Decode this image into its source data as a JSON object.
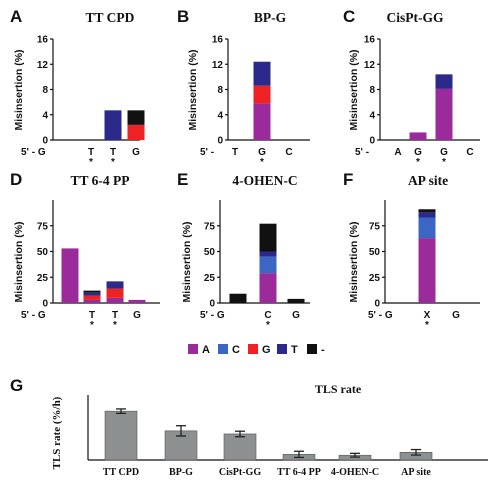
{
  "colors": {
    "A": "#9b2a9b",
    "C": "#3a66c4",
    "G": "#ee2222",
    "T": "#2b2a8a",
    "-": "#111111",
    "tls_bar": "#8c9091"
  },
  "legend": [
    {
      "key": "A",
      "label": "A"
    },
    {
      "key": "C",
      "label": "C"
    },
    {
      "key": "G",
      "label": "G"
    },
    {
      "key": "T",
      "label": "T"
    },
    {
      "key": "-",
      "label": "-"
    }
  ],
  "chart_data": [
    {
      "id": "A",
      "letter": "A",
      "title": "TT CPD",
      "type": "bar",
      "ylabel": "Misinsertion (%)",
      "ylim": [
        0,
        16
      ],
      "yticks": [
        "0",
        "4",
        "8",
        "12",
        "16"
      ],
      "seq_prefix": "5' - G",
      "categories": [
        "T",
        "T",
        "G"
      ],
      "stars": [
        "*",
        "*",
        ""
      ],
      "series": [
        {
          "name": "A",
          "values": [
            0,
            0,
            0
          ]
        },
        {
          "name": "C",
          "values": [
            0,
            0,
            0
          ]
        },
        {
          "name": "G",
          "values": [
            0,
            0,
            2.4
          ]
        },
        {
          "name": "T",
          "values": [
            0,
            4.7,
            0
          ]
        },
        {
          "name": "-",
          "values": [
            0,
            0,
            2.3
          ]
        }
      ]
    },
    {
      "id": "B",
      "letter": "B",
      "title": "BP-G",
      "type": "bar",
      "ylabel": "Misinsertion (%)",
      "ylim": [
        0,
        16
      ],
      "yticks": [
        "0",
        "4",
        "8",
        "12",
        "16"
      ],
      "seq_prefix": "5' -",
      "categories": [
        "T",
        "G",
        "C"
      ],
      "stars": [
        "",
        "*",
        ""
      ],
      "series": [
        {
          "name": "A",
          "values": [
            0,
            5.8,
            0
          ]
        },
        {
          "name": "C",
          "values": [
            0,
            0,
            0
          ]
        },
        {
          "name": "G",
          "values": [
            0,
            2.8,
            0
          ]
        },
        {
          "name": "T",
          "values": [
            0,
            3.8,
            0
          ]
        },
        {
          "name": "-",
          "values": [
            0,
            0,
            0
          ]
        }
      ]
    },
    {
      "id": "C",
      "letter": "C",
      "title": "CisPt-GG",
      "type": "bar",
      "ylabel": "Misinsertion (%)",
      "ylim": [
        0,
        16
      ],
      "yticks": [
        "0",
        "4",
        "8",
        "12",
        "16"
      ],
      "seq_prefix": "5' -",
      "categories": [
        "A",
        "G",
        "G",
        "C"
      ],
      "stars": [
        "",
        "*",
        "*",
        ""
      ],
      "series": [
        {
          "name": "A",
          "values": [
            0,
            1.2,
            8.1,
            0
          ]
        },
        {
          "name": "C",
          "values": [
            0,
            0,
            0,
            0
          ]
        },
        {
          "name": "G",
          "values": [
            0,
            0,
            0,
            0
          ]
        },
        {
          "name": "T",
          "values": [
            0,
            0,
            2.3,
            0
          ]
        },
        {
          "name": "-",
          "values": [
            0,
            0,
            0,
            0
          ]
        }
      ]
    },
    {
      "id": "D",
      "letter": "D",
      "title": "TT 6-4 PP",
      "type": "bar",
      "ylabel": "Misinsertion (%)",
      "ylim": [
        0,
        100
      ],
      "yticks": [
        "0",
        "25",
        "50",
        "75"
      ],
      "seq_prefix": "5' - G",
      "categories": [
        "T",
        "T",
        "G"
      ],
      "stars": [
        "*",
        "*",
        ""
      ],
      "prefix_values": [
        {
          "name": "A",
          "value": 53
        }
      ],
      "series": [
        {
          "name": "A",
          "values": [
            3,
            5,
            3
          ]
        },
        {
          "name": "C",
          "values": [
            0,
            0,
            0
          ]
        },
        {
          "name": "G",
          "values": [
            4,
            9,
            0
          ]
        },
        {
          "name": "T",
          "values": [
            3,
            7,
            0
          ]
        },
        {
          "name": "-",
          "values": [
            2,
            0,
            0
          ]
        }
      ]
    },
    {
      "id": "E",
      "letter": "E",
      "title": "4-OHEN-C",
      "type": "bar",
      "ylabel": "Misinsertion (%)",
      "ylim": [
        0,
        100
      ],
      "yticks": [
        "0",
        "25",
        "50",
        "75"
      ],
      "seq_prefix": "5' - G",
      "categories": [
        "C",
        "G"
      ],
      "stars": [
        "*",
        ""
      ],
      "prefix_values": [
        {
          "name": "-",
          "value": 9
        }
      ],
      "series": [
        {
          "name": "A",
          "values": [
            29,
            0
          ]
        },
        {
          "name": "C",
          "values": [
            16,
            0
          ]
        },
        {
          "name": "G",
          "values": [
            0,
            0
          ]
        },
        {
          "name": "T",
          "values": [
            5,
            0
          ]
        },
        {
          "name": "-",
          "values": [
            27,
            4
          ]
        }
      ]
    },
    {
      "id": "F",
      "letter": "F",
      "title": "AP site",
      "type": "bar",
      "ylabel": "Misinsertion (%)",
      "ylim": [
        0,
        100
      ],
      "yticks": [
        "0",
        "25",
        "50",
        "75"
      ],
      "seq_prefix": "5' - G",
      "categories": [
        "X",
        "G"
      ],
      "stars": [
        "*",
        ""
      ],
      "series": [
        {
          "name": "A",
          "values": [
            63,
            0
          ]
        },
        {
          "name": "C",
          "values": [
            20,
            0
          ]
        },
        {
          "name": "G",
          "values": [
            0,
            0
          ]
        },
        {
          "name": "T",
          "values": [
            5,
            0
          ]
        },
        {
          "name": "-",
          "values": [
            3,
            0
          ]
        }
      ]
    },
    {
      "id": "G",
      "letter": "G",
      "title": "TLS rate",
      "type": "bar",
      "ylabel": "TLS rate (%/h)",
      "ylim": [
        0,
        35
      ],
      "categories": [
        "TT CPD",
        "BP-G",
        "CisPt-GG",
        "TT 6-4 PP",
        "4-OHEN-C",
        "AP site"
      ],
      "values": [
        28.5,
        17,
        15.2,
        3.3,
        2.8,
        4.5
      ],
      "errors": [
        1.3,
        3,
        1.6,
        1.8,
        1.1,
        1.6
      ]
    }
  ]
}
